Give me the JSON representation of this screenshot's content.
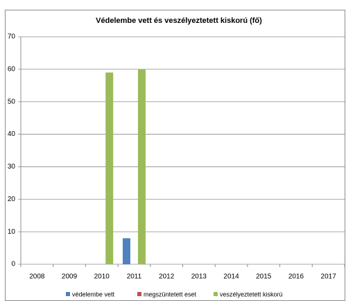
{
  "chart_data": {
    "type": "bar",
    "title": "Védelembe vett és veszélyeztetett kiskorú (fő)",
    "categories": [
      "2008",
      "2009",
      "2010",
      "2011",
      "2012",
      "2013",
      "2014",
      "2015",
      "2016",
      "2017"
    ],
    "series": [
      {
        "name": "védelembe vett",
        "color": "#4f81bd",
        "values": [
          0,
          0,
          0,
          8,
          0,
          0,
          0,
          0,
          0,
          0
        ]
      },
      {
        "name": "megszüntetett eset",
        "color": "#c0504d",
        "values": [
          0,
          0,
          0,
          0,
          0,
          0,
          0,
          0,
          0,
          0
        ]
      },
      {
        "name": "veszélyeztetett kiskorú",
        "color": "#9bbb59",
        "values": [
          0,
          0,
          59,
          60,
          0,
          0,
          0,
          0,
          0,
          0
        ]
      }
    ],
    "ylim": [
      0,
      70
    ],
    "yticks": [
      0,
      10,
      20,
      30,
      40,
      50,
      60,
      70
    ],
    "grid": true,
    "legend": "bottom"
  }
}
